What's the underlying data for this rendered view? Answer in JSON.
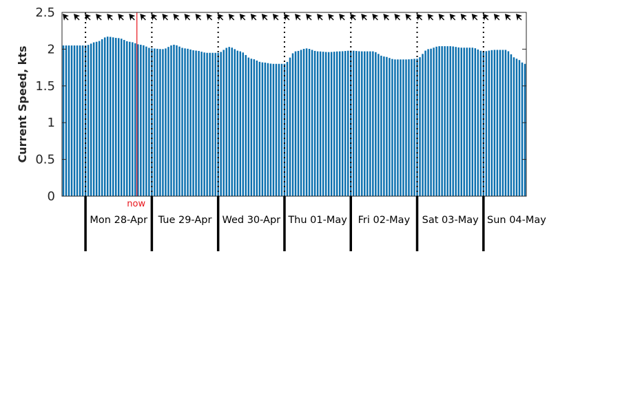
{
  "colors": {
    "bar": "#0b6fae",
    "now_line": "#e8141b",
    "axis": "#262626",
    "arrow": "#000000"
  },
  "chart_data": {
    "type": "bar",
    "ylabel": "Current Speed, kts",
    "ylim": [
      0,
      2.5
    ],
    "yticks": [
      "0",
      "0.5",
      "1",
      "1.5",
      "2",
      "2.5"
    ],
    "xlim_hours": [
      -8.5,
      159.5
    ],
    "bar_interval_hours": 1,
    "now_hour": 18.6,
    "now_label": "now",
    "day_boundaries_hours": [
      0,
      24,
      48,
      72,
      96,
      120,
      144
    ],
    "days": [
      "Mon 28-Apr",
      "Tue 29-Apr",
      "Wed 30-Apr",
      "Thu 01-May",
      "Fri 02-May",
      "Sat 03-May",
      "Sun 04-May"
    ],
    "direction_arrows": "north-west, every 4 hours",
    "speed_profile_hours": [
      -8,
      0,
      4,
      8,
      12,
      16,
      20,
      24,
      28,
      32,
      36,
      40,
      44,
      48,
      52,
      56,
      60,
      64,
      68,
      72,
      76,
      80,
      84,
      88,
      92,
      96,
      100,
      104,
      108,
      112,
      116,
      120,
      124,
      128,
      132,
      136,
      140,
      144,
      148,
      152,
      156,
      159
    ],
    "speed_profile_kts": [
      2.05,
      2.05,
      2.1,
      2.17,
      2.15,
      2.1,
      2.06,
      2.01,
      2.0,
      2.06,
      2.01,
      1.98,
      1.95,
      1.95,
      2.03,
      1.97,
      1.87,
      1.82,
      1.8,
      1.8,
      1.97,
      2.01,
      1.97,
      1.96,
      1.97,
      1.98,
      1.97,
      1.97,
      1.9,
      1.86,
      1.86,
      1.87,
      2.0,
      2.04,
      2.04,
      2.02,
      2.02,
      1.97,
      1.99,
      1.99,
      1.87,
      1.8
    ]
  }
}
